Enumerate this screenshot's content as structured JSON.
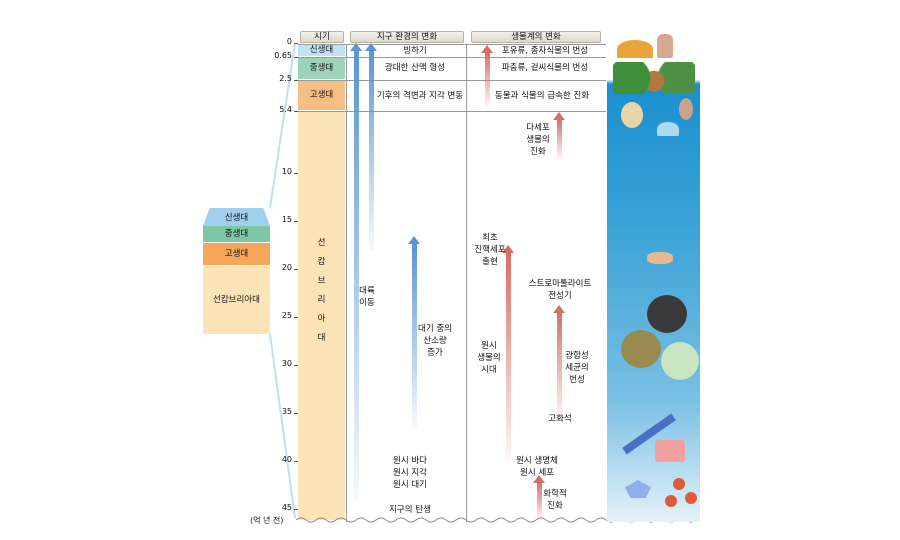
{
  "headers": {
    "period": "시기",
    "environment": "지구 환경의 변화",
    "life": "생물계의 변화"
  },
  "axis": {
    "ticks": [
      "0",
      "0.65",
      "2.5",
      "5.4",
      "10",
      "15",
      "20",
      "25",
      "30",
      "35",
      "40",
      "45"
    ],
    "unit": "(억 년 전)"
  },
  "eras": {
    "cenozoic": "신생대",
    "mesozoic": "중생대",
    "paleozoic": "고생대",
    "precambrian": "선캄브리아대",
    "precambrian_vertical": [
      "선",
      "캄",
      "브",
      "리",
      "아",
      "대"
    ]
  },
  "environment": {
    "ice_age": "빙하기",
    "mountains": "광대한 산맥 형성",
    "climate": "기후의 격변과 지각 변동",
    "drift": [
      "대륙",
      "이동"
    ],
    "oxygen": [
      "대기 중의",
      "산소량",
      "증가"
    ],
    "primitive": [
      "원시 바다",
      "원시 지각",
      "원시 대기"
    ],
    "birth": "지구의 탄생"
  },
  "life": {
    "mammals": "포유류, 종자식물의 번성",
    "reptiles": "파충류, 겉씨식물의 번성",
    "rapid": "동물과 식물의 급속한 진화",
    "multicell": [
      "다세포",
      "생물의",
      "진화"
    ],
    "eukaryote": [
      "최초",
      "진핵세포",
      "출현"
    ],
    "stromatolite": [
      "스트로마톨라이트",
      "전성기"
    ],
    "primitive_age": [
      "원시",
      "생물의",
      "시대"
    ],
    "photosynthetic": [
      "광합성",
      "세균의",
      "번성"
    ],
    "old_fossil": "고화석",
    "protocell": [
      "원시 생명체",
      "원시 세포"
    ],
    "chemical": [
      "화학적",
      "진화"
    ]
  },
  "colors": {
    "cenozoic": "#9fd0ef",
    "mesozoic": "#8fcfae",
    "paleozoic": "#f7be85",
    "precambrian": "#fde3b8",
    "env_arrow": "#5b95d3",
    "life_arrow": "#d66f63",
    "sea": "#3aa3d6"
  },
  "illustrations": [
    "human-and-mountain",
    "dinosaurs-and-trees",
    "ammonites-jellyfish-trilobite",
    "eukaryotic-cells",
    "stromatolites",
    "cyanobacteria",
    "dna-and-molecules"
  ]
}
